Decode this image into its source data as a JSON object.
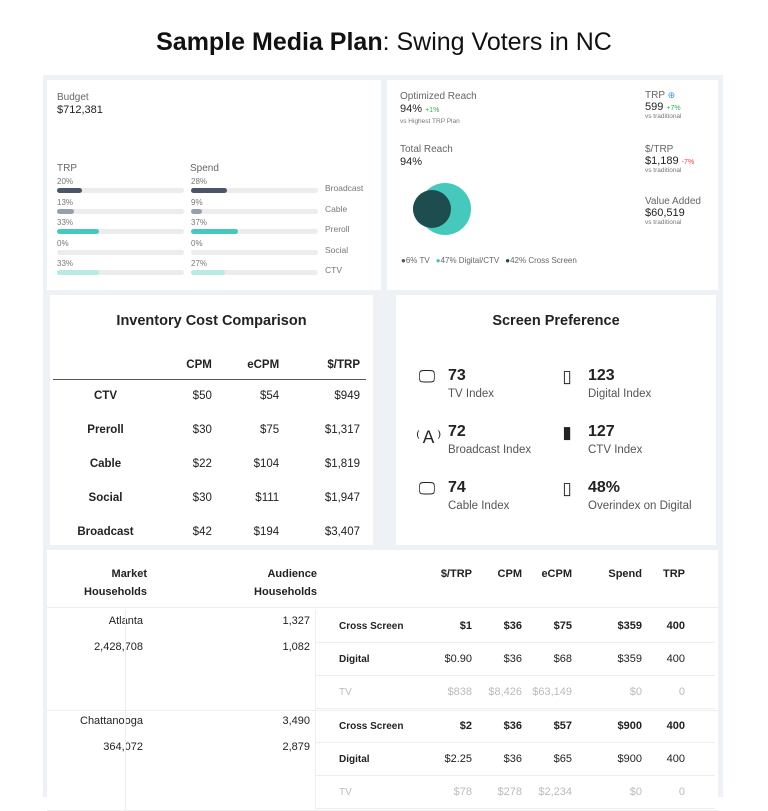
{
  "title": {
    "bold": "Sample Media Plan",
    "rest": ": Swing Voters in NC"
  },
  "budget": {
    "label": "Budget",
    "value": "$712,381"
  },
  "trp_header": "TRP",
  "spend_header": "Spend",
  "channels": [
    {
      "name": "Broadcast",
      "trp": "20%",
      "trp_val": 20,
      "spend": "28%",
      "spend_val": 28,
      "color": "#4a5568"
    },
    {
      "name": "Cable",
      "trp": "13%",
      "trp_val": 13,
      "spend": "9%",
      "spend_val": 9,
      "color": "#94a0b0"
    },
    {
      "name": "Preroll",
      "trp": "33%",
      "trp_val": 33,
      "spend": "37%",
      "spend_val": 37,
      "color": "#45c9bd"
    },
    {
      "name": "Social",
      "trp": "0%",
      "trp_val": 0,
      "spend": "0%",
      "spend_val": 0,
      "color": "#45c9bd"
    },
    {
      "name": "CTV",
      "trp": "33%",
      "trp_val": 33,
      "spend": "27%",
      "spend_val": 27,
      "color": "#b8ebe6"
    }
  ],
  "reach": {
    "opt_label": "Optimized Reach",
    "opt_value": "94%",
    "opt_delta": "+1%",
    "opt_sub": "vs Highest TRP Plan",
    "total_label": "Total Reach",
    "total_value": "94%",
    "legend": [
      "6% TV",
      "47% Digital/CTV",
      "42% Cross Screen"
    ]
  },
  "kpis": [
    {
      "label": "TRP",
      "value": "599",
      "delta": "+7%",
      "delta_color": "#3aa655",
      "sub": "vs traditional"
    },
    {
      "label": "$/TRP",
      "value": "$1,189",
      "delta": "-7%",
      "delta_color": "#e53e3e",
      "sub": "vs traditional"
    },
    {
      "label": "Value Added",
      "value": "$60,519",
      "delta": "",
      "sub": "vs traditional"
    }
  ],
  "inventory": {
    "title": "Inventory Cost Comparison",
    "headers": [
      "",
      "CPM",
      "eCPM",
      "$/TRP"
    ],
    "rows": [
      [
        "CTV",
        "$50",
        "$54",
        "$949"
      ],
      [
        "Preroll",
        "$30",
        "$75",
        "$1,317"
      ],
      [
        "Cable",
        "$22",
        "$104",
        "$1,819"
      ],
      [
        "Social",
        "$30",
        "$111",
        "$1,947"
      ],
      [
        "Broadcast",
        "$42",
        "$194",
        "$3,407"
      ]
    ]
  },
  "screen": {
    "title": "Screen Preference",
    "items": [
      {
        "value": "73",
        "label": "TV Index"
      },
      {
        "value": "123",
        "label": "Digital Index"
      },
      {
        "value": "72",
        "label": "Broadcast Index"
      },
      {
        "value": "127",
        "label": "CTV Index"
      },
      {
        "value": "74",
        "label": "Cable Index"
      },
      {
        "value": "48%",
        "label": "Overindex on Digital"
      }
    ]
  },
  "markets": {
    "headers": {
      "market": "Market Households",
      "audience": "Audience Households",
      "cols": [
        "$/TRP",
        "CPM",
        "eCPM",
        "Spend",
        "TRP"
      ]
    },
    "blocks": [
      {
        "name": "Atlanta",
        "households": "2,428,708",
        "aud1": "1,327",
        "aud2": "1,082",
        "rows": [
          [
            "Cross Screen",
            "$1",
            "$36",
            "$75",
            "$359",
            "400"
          ],
          [
            "Digital",
            "$0.90",
            "$36",
            "$68",
            "$359",
            "400"
          ],
          [
            "TV",
            "$838",
            "$8,426",
            "$63,149",
            "$0",
            "0"
          ]
        ]
      },
      {
        "name": "Chattanooga",
        "households": "364,072",
        "aud1": "3,490",
        "aud2": "2,879",
        "rows": [
          [
            "Cross Screen",
            "$2",
            "$36",
            "$57",
            "$900",
            "400"
          ],
          [
            "Digital",
            "$2.25",
            "$36",
            "$65",
            "$900",
            "400"
          ],
          [
            "TV",
            "$78",
            "$278",
            "$2,234",
            "$0",
            "0"
          ]
        ]
      }
    ]
  }
}
